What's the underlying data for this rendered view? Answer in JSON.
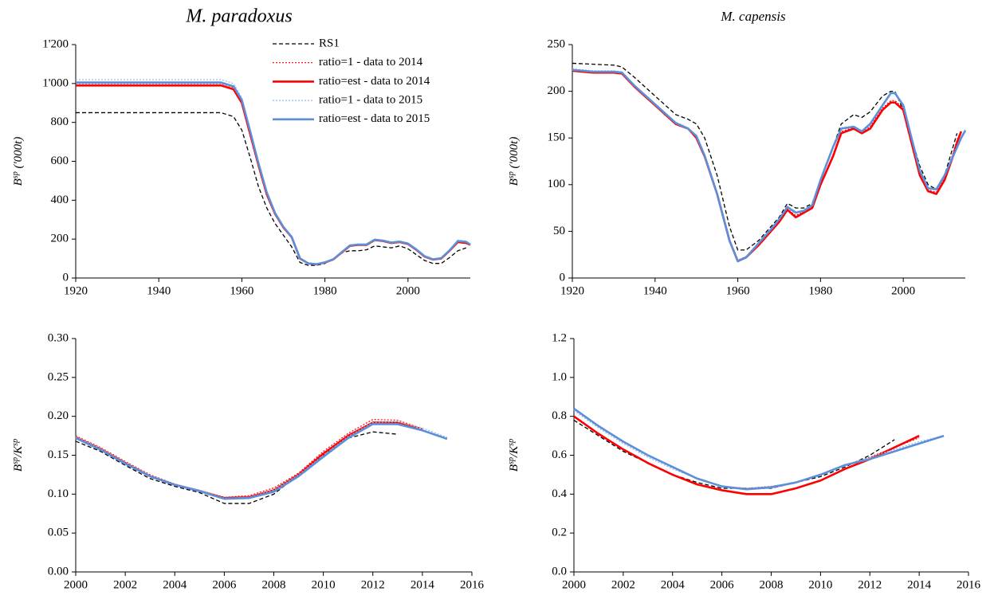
{
  "chart_data": [
    {
      "type": "line",
      "title": "M. paradoxus",
      "ylabel": [
        "B",
        "sp",
        " ('000t)"
      ],
      "x": [
        1920,
        1930,
        1940,
        1950,
        1955,
        1958,
        1960,
        1962,
        1964,
        1966,
        1968,
        1970,
        1972,
        1974,
        1976,
        1978,
        1980,
        1982,
        1984,
        1986,
        1988,
        1990,
        1992,
        1994,
        1996,
        1998,
        2000,
        2002,
        2004,
        2006,
        2008,
        2010,
        2012,
        2014,
        2015
      ],
      "xlim": [
        1920,
        2015
      ],
      "xticks": [
        1920,
        1940,
        1960,
        1980,
        2000
      ],
      "ylim": [
        0,
        1200
      ],
      "yticks": [
        0,
        200,
        400,
        600,
        800,
        {
          "value": 1000,
          "label": "1'000"
        },
        {
          "value": 1200,
          "label": "1'200"
        }
      ],
      "legend": "upper right",
      "series": [
        {
          "name": "RS1",
          "color": "#000000",
          "style": "dashed",
          "values": [
            850,
            850,
            850,
            850,
            850,
            830,
            760,
            620,
            470,
            360,
            280,
            220,
            160,
            80,
            65,
            65,
            75,
            100,
            130,
            140,
            140,
            145,
            165,
            160,
            155,
            165,
            150,
            120,
            90,
            75,
            75,
            105,
            140,
            155,
            null
          ]
        },
        {
          "name": "ratio=1 - data to 2014",
          "color": "#ff0000",
          "style": "dotted",
          "values": [
            1000,
            1000,
            1000,
            1000,
            1000,
            980,
            910,
            750,
            590,
            440,
            335,
            265,
            212,
            102,
            76,
            71,
            82,
            97,
            133,
            168,
            174,
            173,
            198,
            193,
            183,
            188,
            178,
            148,
            113,
            97,
            103,
            143,
            190,
            184,
            null
          ]
        },
        {
          "name": "ratio=est - data to 2014",
          "color": "#ff0000",
          "style": "solid",
          "values": [
            990,
            990,
            990,
            990,
            990,
            970,
            900,
            740,
            580,
            430,
            330,
            260,
            210,
            100,
            75,
            70,
            80,
            95,
            130,
            165,
            170,
            170,
            195,
            190,
            180,
            185,
            175,
            145,
            110,
            95,
            100,
            140,
            185,
            180,
            170
          ]
        },
        {
          "name": "ratio=1 - data to 2015",
          "color": "#8fb8e8",
          "style": "dotted",
          "values": [
            1020,
            1020,
            1020,
            1020,
            1020,
            1000,
            925,
            760,
            595,
            445,
            338,
            266,
            213,
            103,
            77,
            72,
            83,
            98,
            134,
            170,
            175,
            175,
            200,
            195,
            185,
            190,
            180,
            150,
            115,
            98,
            104,
            145,
            195,
            190,
            175
          ]
        },
        {
          "name": "ratio=est - data to 2015",
          "color": "#5b8fd9",
          "style": "solid",
          "values": [
            1005,
            1005,
            1005,
            1005,
            1005,
            985,
            915,
            755,
            590,
            440,
            334,
            263,
            211,
            101,
            75,
            71,
            81,
            96,
            132,
            167,
            172,
            172,
            197,
            192,
            182,
            187,
            177,
            147,
            112,
            96,
            102,
            142,
            190,
            186,
            172
          ]
        }
      ]
    },
    {
      "type": "line",
      "title": "M. capensis",
      "ylabel": [
        "B",
        "sp",
        " ('000t)"
      ],
      "x": [
        1920,
        1925,
        1930,
        1932,
        1935,
        1940,
        1945,
        1948,
        1950,
        1952,
        1955,
        1958,
        1960,
        1962,
        1965,
        1968,
        1970,
        1972,
        1974,
        1976,
        1978,
        1980,
        1983,
        1985,
        1988,
        1990,
        1992,
        1995,
        1997,
        1998,
        2000,
        2002,
        2004,
        2006,
        2008,
        2010,
        2012,
        2013,
        2014,
        2015
      ],
      "xlim": [
        1920,
        2015
      ],
      "xticks": [
        1920,
        1940,
        1960,
        1980,
        2000
      ],
      "ylim": [
        0,
        250
      ],
      "yticks": [
        0,
        50,
        100,
        150,
        200,
        250
      ],
      "series": [
        {
          "color": "#000000",
          "style": "dashed",
          "values": [
            230,
            229,
            228,
            226,
            215,
            195,
            175,
            170,
            165,
            150,
            110,
            55,
            30,
            30,
            40,
            55,
            65,
            80,
            75,
            75,
            80,
            105,
            140,
            165,
            175,
            172,
            178,
            195,
            200,
            200,
            180,
            150,
            120,
            100,
            95,
            110,
            140,
            155,
            null,
            null
          ]
        },
        {
          "color": "#ff0000",
          "style": "dotted",
          "values": [
            223,
            221,
            221,
            220,
            206,
            186,
            166,
            160,
            151,
            131,
            91,
            41,
            19,
            23,
            36,
            51,
            61,
            74,
            67,
            71,
            76,
            101,
            132,
            157,
            161,
            156,
            162,
            182,
            190,
            190,
            182,
            147,
            112,
            94,
            92,
            107,
            133,
            148,
            158,
            null
          ]
        },
        {
          "color": "#ff0000",
          "style": "solid",
          "values": [
            222,
            220,
            220,
            219,
            205,
            185,
            165,
            160,
            150,
            130,
            90,
            40,
            18,
            22,
            35,
            50,
            60,
            73,
            65,
            70,
            75,
            100,
            130,
            155,
            160,
            155,
            160,
            180,
            188,
            188,
            180,
            145,
            110,
            93,
            90,
            105,
            130,
            145,
            157,
            null
          ]
        },
        {
          "color": "#8fb8e8",
          "style": "dotted",
          "values": [
            224,
            222,
            222,
            221,
            207,
            187,
            167,
            161,
            153,
            132,
            91,
            41,
            19,
            23,
            38,
            53,
            64,
            77,
            71,
            73,
            79,
            106,
            141,
            161,
            163,
            158,
            166,
            186,
            199,
            199,
            186,
            151,
            116,
            97,
            96,
            111,
            131,
            141,
            151,
            159
          ]
        },
        {
          "color": "#5b8fd9",
          "style": "solid",
          "values": [
            223,
            221,
            221,
            220,
            206,
            186,
            166,
            160,
            152,
            131,
            90,
            40,
            18,
            22,
            37,
            52,
            63,
            76,
            70,
            72,
            78,
            105,
            140,
            160,
            162,
            157,
            165,
            185,
            198,
            198,
            185,
            150,
            115,
            96,
            95,
            110,
            130,
            140,
            150,
            158
          ]
        }
      ]
    },
    {
      "type": "line",
      "ylabel": [
        "B",
        "sp",
        "/K",
        "sp"
      ],
      "x": [
        2000,
        2001,
        2002,
        2003,
        2004,
        2005,
        2006,
        2007,
        2008,
        2009,
        2010,
        2011,
        2012,
        2013,
        2014,
        2015
      ],
      "xlim": [
        2000,
        2016
      ],
      "xticks": [
        2000,
        2002,
        2004,
        2006,
        2008,
        2010,
        2012,
        2014,
        2016
      ],
      "ylim": [
        0,
        0.3
      ],
      "yticks": [
        {
          "value": 0,
          "label": "0.00"
        },
        0.05,
        {
          "value": 0.1,
          "label": "0.10"
        },
        0.15,
        {
          "value": 0.2,
          "label": "0.20"
        },
        0.25,
        {
          "value": 0.3,
          "label": "0.30"
        }
      ],
      "series": [
        {
          "color": "#000000",
          "style": "dashed",
          "values": [
            0.168,
            0.155,
            0.137,
            0.12,
            0.11,
            0.102,
            0.088,
            0.088,
            0.1,
            0.125,
            0.15,
            0.172,
            0.18,
            0.177,
            null,
            null
          ]
        },
        {
          "color": "#ff0000",
          "style": "dotted",
          "values": [
            0.175,
            0.16,
            0.142,
            0.125,
            0.113,
            0.105,
            0.096,
            0.098,
            0.108,
            0.127,
            0.155,
            0.178,
            0.196,
            0.195,
            0.184,
            null
          ]
        },
        {
          "color": "#ff0000",
          "style": "solid",
          "values": [
            0.173,
            0.158,
            0.14,
            0.123,
            0.112,
            0.104,
            0.095,
            0.096,
            0.105,
            0.125,
            0.152,
            0.175,
            0.192,
            0.192,
            0.182,
            null
          ]
        },
        {
          "color": "#8fb8e8",
          "style": "dotted",
          "values": [
            0.174,
            0.159,
            0.141,
            0.124,
            0.113,
            0.105,
            0.095,
            0.096,
            0.105,
            0.125,
            0.15,
            0.174,
            0.192,
            0.193,
            0.185,
            0.173
          ]
        },
        {
          "color": "#5b8fd9",
          "style": "solid",
          "values": [
            0.172,
            0.157,
            0.139,
            0.123,
            0.112,
            0.104,
            0.094,
            0.095,
            0.103,
            0.123,
            0.148,
            0.172,
            0.19,
            0.19,
            0.182,
            0.171
          ]
        }
      ]
    },
    {
      "type": "line",
      "ylabel": [
        "B",
        "sp",
        "/K",
        "sp"
      ],
      "x": [
        2000,
        2001,
        2002,
        2003,
        2004,
        2005,
        2006,
        2007,
        2008,
        2009,
        2010,
        2011,
        2012,
        2013,
        2014,
        2015
      ],
      "xlim": [
        2000,
        2016
      ],
      "xticks": [
        2000,
        2002,
        2004,
        2006,
        2008,
        2010,
        2012,
        2014,
        2016
      ],
      "ylim": [
        0,
        1.2
      ],
      "yticks": [
        {
          "value": 0,
          "label": "0.0"
        },
        0.2,
        0.4,
        0.6,
        0.8,
        {
          "value": 1,
          "label": "1.0"
        },
        1.2
      ],
      "series": [
        {
          "color": "#000000",
          "style": "dashed",
          "values": [
            0.78,
            0.7,
            0.62,
            0.56,
            0.5,
            0.46,
            0.43,
            0.43,
            0.43,
            0.46,
            0.49,
            0.54,
            0.6,
            0.68,
            null,
            null
          ]
        },
        {
          "color": "#ff0000",
          "style": "dotted",
          "values": [
            0.84,
            0.75,
            0.67,
            0.6,
            0.54,
            0.48,
            0.44,
            0.43,
            0.44,
            0.46,
            0.5,
            0.55,
            0.59,
            0.64,
            0.69,
            null
          ]
        },
        {
          "color": "#ff0000",
          "style": "solid",
          "values": [
            0.8,
            0.71,
            0.63,
            0.56,
            0.5,
            0.45,
            0.42,
            0.4,
            0.4,
            0.43,
            0.47,
            0.53,
            0.58,
            0.64,
            0.7,
            null
          ]
        },
        {
          "color": "#8fb8e8",
          "style": "dotted",
          "values": [
            0.83,
            0.74,
            0.66,
            0.59,
            0.53,
            0.48,
            0.44,
            0.43,
            0.44,
            0.46,
            0.5,
            0.55,
            0.59,
            0.63,
            0.67,
            0.7
          ]
        },
        {
          "color": "#5b8fd9",
          "style": "solid",
          "values": [
            0.84,
            0.75,
            0.67,
            0.6,
            0.54,
            0.48,
            0.44,
            0.425,
            0.435,
            0.46,
            0.5,
            0.55,
            0.58,
            0.62,
            0.66,
            0.7
          ]
        }
      ]
    }
  ]
}
